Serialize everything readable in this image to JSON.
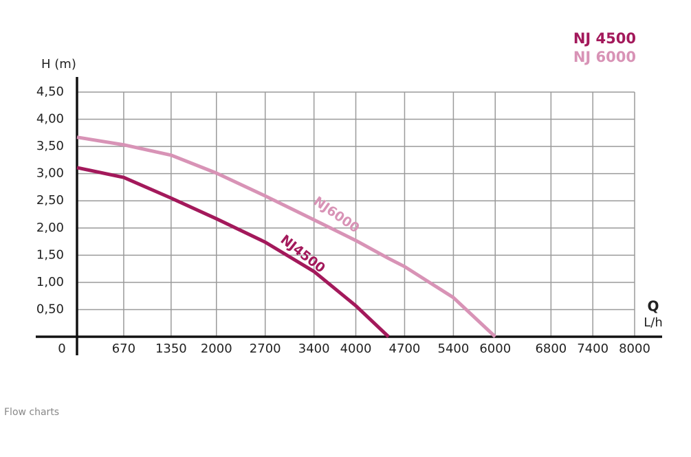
{
  "chart_data": {
    "type": "line",
    "y_label": "H (m)",
    "x_label": "Q",
    "x_unit": "L/h",
    "x": [
      0,
      670,
      1350,
      2000,
      2700,
      3400,
      4000,
      4470,
      4700,
      5400,
      6000
    ],
    "series": [
      {
        "name": "NJ 4500",
        "color": "#a3195b",
        "values": [
          3.11,
          2.93,
          2.55,
          2.17,
          1.74,
          1.2,
          0.57,
          0,
          null,
          null,
          null
        ]
      },
      {
        "name": "NJ 6000",
        "color": "#d893b6",
        "values": [
          3.67,
          3.53,
          3.34,
          3.01,
          2.59,
          2.15,
          1.77,
          1.44,
          1.29,
          0.72,
          0
        ]
      }
    ],
    "annotations": [
      "NJ4500",
      "NJ6000"
    ],
    "xlim": [
      0,
      8000
    ],
    "xticks": [
      0,
      670,
      1350,
      2000,
      2700,
      3400,
      4000,
      4700,
      5400,
      6000,
      6800,
      7400,
      8000
    ],
    "ylim": [
      0,
      4.5
    ],
    "yticks": [
      {
        "value": 0.5,
        "label": "0,50"
      },
      {
        "value": 1,
        "label": "1,00"
      },
      {
        "value": 1.5,
        "label": "1,50"
      },
      {
        "value": 2,
        "label": "2,00"
      },
      {
        "value": 2.5,
        "label": "2,50"
      },
      {
        "value": 3,
        "label": "3,00"
      },
      {
        "value": 3.5,
        "label": "3,50"
      },
      {
        "value": 4,
        "label": "4,00"
      },
      {
        "value": 4.5,
        "label": "4,50"
      }
    ],
    "grid": true
  },
  "caption": "Flow charts"
}
